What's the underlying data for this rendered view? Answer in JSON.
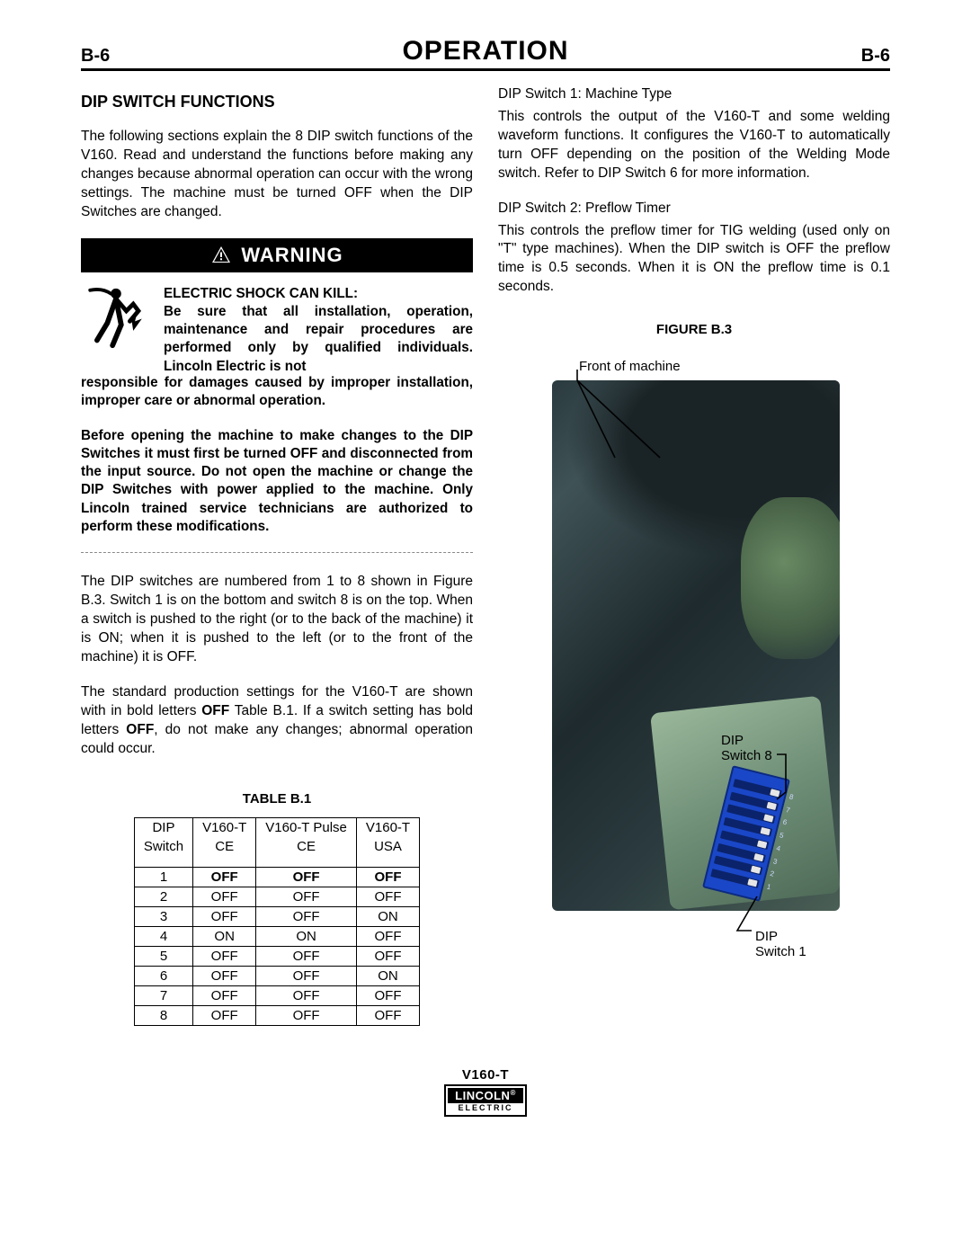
{
  "header": {
    "page_left": "B-6",
    "title": "OPERATION",
    "page_right": "B-6"
  },
  "left": {
    "section_title": "DIP SWITCH FUNCTIONS",
    "intro": "The following sections explain the 8 DIP switch functions of the V160.  Read and understand the functions before making any changes because abnormal operation can occur with the wrong settings.  The machine must be turned OFF when the DIP Switches are changed.",
    "warning_label": "WARNING",
    "shock_heading": "ELECTRIC SHOCK CAN KILL:",
    "shock_p1": "Be sure that all installation, operation, maintenance and repair procedures are performed only by qualified individuals.  Lincoln Electric is not responsible for damages caused by improper installation, improper care or abnormal operation.",
    "shock_p2": "Before opening the machine to make changes to the DIP Switches it must first be turned OFF and disconnected from the input source.  Do not open the machine or change the DIP Switches with power applied to the machine.  Only Lincoln trained service technicians are authorized to perform these modifications.",
    "after1": "The DIP switches are numbered from 1 to 8 shown in Figure B.3.  Switch 1 is on the bottom and switch 8 is on the top.  When a switch is pushed to the right (or to the back of the machine) it is ON; when it is pushed to the left (or to the front of the machine) it is OFF.",
    "after2_a": "The standard production settings for the V160-T are shown with in bold letters ",
    "after2_bold1": "OFF",
    "after2_b": " Table B.1. If a switch setting has bold letters ",
    "after2_bold2": "OFF",
    "after2_c": ", do not make any changes; abnormal operation could occur.",
    "table_caption": "TABLE B.1",
    "table": {
      "head_row1": [
        "DIP",
        "V160-T",
        "V160-T Pulse",
        "V160-T"
      ],
      "head_row2": [
        "Switch",
        "CE",
        "CE",
        "USA"
      ],
      "rows": [
        {
          "n": "1",
          "a": {
            "t": "OFF",
            "b": true
          },
          "b": {
            "t": "OFF",
            "b": true
          },
          "c": {
            "t": "OFF",
            "b": true
          }
        },
        {
          "n": "2",
          "a": {
            "t": "OFF",
            "b": false
          },
          "b": {
            "t": "OFF",
            "b": false
          },
          "c": {
            "t": "OFF",
            "b": false
          }
        },
        {
          "n": "3",
          "a": {
            "t": "OFF",
            "b": false
          },
          "b": {
            "t": "OFF",
            "b": false
          },
          "c": {
            "t": "ON",
            "b": false
          }
        },
        {
          "n": "4",
          "a": {
            "t": "ON",
            "b": false
          },
          "b": {
            "t": "ON",
            "b": false
          },
          "c": {
            "t": "OFF",
            "b": false
          }
        },
        {
          "n": "5",
          "a": {
            "t": "OFF",
            "b": false
          },
          "b": {
            "t": "OFF",
            "b": false
          },
          "c": {
            "t": "OFF",
            "b": false
          }
        },
        {
          "n": "6",
          "a": {
            "t": "OFF",
            "b": false
          },
          "b": {
            "t": "OFF",
            "b": false
          },
          "c": {
            "t": "ON",
            "b": false
          }
        },
        {
          "n": "7",
          "a": {
            "t": "OFF",
            "b": false
          },
          "b": {
            "t": "OFF",
            "b": false
          },
          "c": {
            "t": "OFF",
            "b": false
          }
        },
        {
          "n": "8",
          "a": {
            "t": "OFF",
            "b": false
          },
          "b": {
            "t": "OFF",
            "b": false
          },
          "c": {
            "t": "OFF",
            "b": false
          }
        }
      ]
    }
  },
  "right": {
    "s1_h": "DIP Switch 1:  Machine Type",
    "s1_p": "This controls the output of the V160-T and some welding waveform functions.  It configures the V160-T to automatically turn OFF depending on the position of the Welding Mode switch.  Refer to DIP Switch 6 for more information.",
    "s2_h": "DIP Switch 2:  Preflow Timer",
    "s2_p": "This controls the preflow timer for TIG welding (used only on \"T\" type machines).  When the DIP switch is OFF the preflow time is 0.5 seconds.  When it is ON the preflow time is 0.1 seconds.",
    "fig_caption": "FIGURE B.3",
    "callout_front": "Front of machine",
    "callout_s8a": "DIP",
    "callout_s8b": "Switch 8",
    "callout_s1a": "DIP",
    "callout_s1b": "Switch 1"
  },
  "footer": {
    "model": "V160-T",
    "brand_top": "LINCOLN",
    "brand_reg": "®",
    "brand_bot": "ELECTRIC"
  }
}
